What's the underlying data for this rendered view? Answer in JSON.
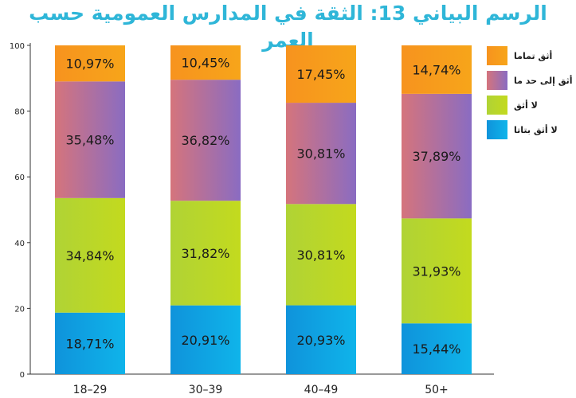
{
  "chart_data": {
    "type": "bar",
    "stacked": true,
    "title": "الرسم البياني 13: الثقة في المدارس العمومية حسب العمر",
    "categories": [
      "18-29",
      "30-39",
      "40-49",
      "50+"
    ],
    "ylim": [
      0,
      100
    ],
    "yticks": [
      "0",
      "20",
      "40",
      "60",
      "80",
      "100"
    ],
    "legend_position": "right",
    "grid": false,
    "series": [
      {
        "name": "لا أثق بتاتا",
        "color": "#0f93db",
        "values": [
          18.71,
          20.91,
          20.93,
          15.44
        ],
        "labels": [
          "18,71%",
          "20,91%",
          "20,93%",
          "15,44%"
        ]
      },
      {
        "name": "لا أثق",
        "color": "#b0d335",
        "values": [
          34.84,
          31.82,
          30.81,
          31.93
        ],
        "labels": [
          "34,84%",
          "31,82%",
          "30,81%",
          "31,93%"
        ]
      },
      {
        "name": "أثق إلى حد ما",
        "color": "#b27fa3",
        "values": [
          35.48,
          36.82,
          30.81,
          37.89
        ],
        "labels": [
          "35,48%",
          "36,82%",
          "30,81%",
          "37,89%"
        ]
      },
      {
        "name": "أثق تماما",
        "color": "#f7931e",
        "values": [
          10.97,
          10.45,
          17.45,
          14.74
        ],
        "labels": [
          "10,97%",
          "10,45%",
          "17,45%",
          "14,74%"
        ]
      }
    ]
  }
}
